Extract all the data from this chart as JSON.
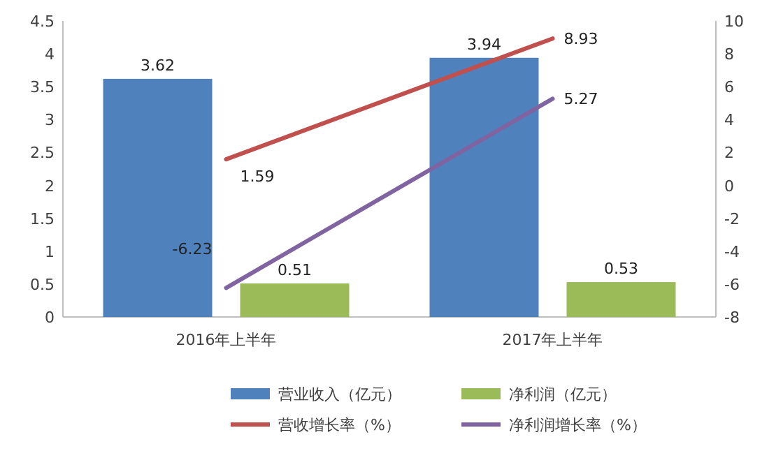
{
  "chart_data": {
    "type": "bar",
    "categories": [
      "2016年上半年",
      "2017年上半年"
    ],
    "series": [
      {
        "name": "营业收入（亿元）",
        "color": "#4f81bd",
        "values": [
          3.62,
          3.94
        ]
      },
      {
        "name": "净利润（亿元）",
        "color": "#9bbb59",
        "values": [
          0.51,
          0.53
        ]
      },
      {
        "name": "营收增长率（%）",
        "type": "line",
        "axis": "y2",
        "color": "#c0504d",
        "values": [
          1.59,
          8.93
        ]
      },
      {
        "name": "净利润增长率（%）",
        "type": "line",
        "axis": "y2",
        "color": "#8064a2",
        "values": [
          -6.23,
          5.27
        ]
      }
    ],
    "ylim": [
      0,
      4.5
    ],
    "yticks": [
      0,
      0.5,
      1,
      1.5,
      2,
      2.5,
      3,
      3.5,
      4,
      4.5
    ],
    "y2lim": [
      -8,
      10
    ],
    "y2ticks": [
      -8,
      -6,
      -4,
      -2,
      0,
      2,
      4,
      6,
      8,
      10
    ],
    "data_labels": true,
    "legend": "bottom"
  }
}
